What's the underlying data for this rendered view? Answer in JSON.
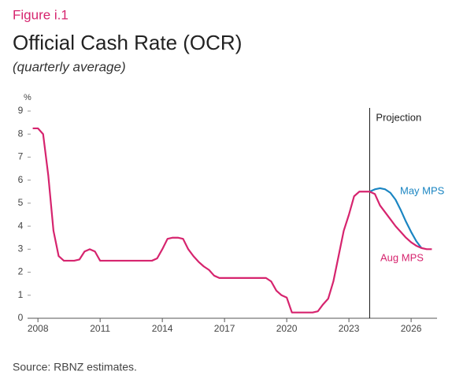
{
  "chart_data": {
    "type": "line",
    "figure_label": "Figure i.1",
    "title": "Official Cash Rate (OCR)",
    "subtitle": "(quarterly average)",
    "y_unit": "%",
    "source": "Source: RBNZ estimates.",
    "xlim": [
      2007.5,
      2027.25
    ],
    "xticks": [
      2008,
      2011,
      2014,
      2017,
      2020,
      2023,
      2026
    ],
    "ylim": [
      0,
      9
    ],
    "yticks": [
      0,
      1,
      2,
      3,
      4,
      5,
      6,
      7,
      8,
      9
    ],
    "annotations": [
      {
        "x": 2024,
        "label": "Projection"
      }
    ],
    "x": [
      2007.75,
      2008,
      2008.25,
      2008.5,
      2008.75,
      2009,
      2009.25,
      2009.5,
      2009.75,
      2010,
      2010.25,
      2010.5,
      2010.75,
      2011,
      2011.25,
      2011.5,
      2011.75,
      2012,
      2012.25,
      2012.5,
      2012.75,
      2013,
      2013.25,
      2013.5,
      2013.75,
      2014,
      2014.25,
      2014.5,
      2014.75,
      2015,
      2015.25,
      2015.5,
      2015.75,
      2016,
      2016.25,
      2016.5,
      2016.75,
      2017,
      2017.25,
      2017.5,
      2017.75,
      2018,
      2018.25,
      2018.5,
      2018.75,
      2019,
      2019.25,
      2019.5,
      2019.75,
      2020,
      2020.25,
      2020.5,
      2020.75,
      2021,
      2021.25,
      2021.5,
      2021.75,
      2022,
      2022.25,
      2022.5,
      2022.75,
      2023,
      2023.25,
      2023.5,
      2023.75,
      2024,
      2024.25,
      2024.5,
      2024.75,
      2025,
      2025.25,
      2025.5,
      2025.75,
      2026,
      2026.25,
      2026.5,
      2026.75,
      2027
    ],
    "series": [
      {
        "name": "May MPS",
        "color": "#1a85c2",
        "values": [
          null,
          null,
          null,
          null,
          null,
          null,
          null,
          null,
          null,
          null,
          null,
          null,
          null,
          null,
          null,
          null,
          null,
          null,
          null,
          null,
          null,
          null,
          null,
          null,
          null,
          null,
          null,
          null,
          null,
          null,
          null,
          null,
          null,
          null,
          null,
          null,
          null,
          null,
          null,
          null,
          null,
          null,
          null,
          null,
          null,
          null,
          null,
          null,
          null,
          null,
          null,
          null,
          null,
          null,
          null,
          null,
          null,
          null,
          null,
          null,
          null,
          null,
          null,
          null,
          null,
          5.5,
          5.6,
          5.65,
          5.6,
          5.45,
          5.15,
          4.7,
          4.2,
          3.75,
          3.35,
          3.05,
          null,
          null
        ]
      },
      {
        "name": "Aug MPS",
        "color": "#d6246e",
        "values": [
          8.25,
          8.25,
          8.0,
          6.2,
          3.8,
          2.7,
          2.5,
          2.5,
          2.5,
          2.55,
          2.9,
          3.0,
          2.9,
          2.5,
          2.5,
          2.5,
          2.5,
          2.5,
          2.5,
          2.5,
          2.5,
          2.5,
          2.5,
          2.5,
          2.6,
          3.0,
          3.45,
          3.5,
          3.5,
          3.45,
          3.0,
          2.7,
          2.45,
          2.25,
          2.1,
          1.85,
          1.75,
          1.75,
          1.75,
          1.75,
          1.75,
          1.75,
          1.75,
          1.75,
          1.75,
          1.75,
          1.6,
          1.2,
          1.0,
          0.9,
          0.25,
          0.25,
          0.25,
          0.25,
          0.25,
          0.3,
          0.6,
          0.85,
          1.6,
          2.7,
          3.8,
          4.5,
          5.3,
          5.5,
          5.5,
          5.5,
          5.4,
          4.9,
          4.6,
          4.3,
          4.0,
          3.75,
          3.5,
          3.3,
          3.15,
          3.05,
          3.0,
          3.0
        ]
      }
    ]
  }
}
